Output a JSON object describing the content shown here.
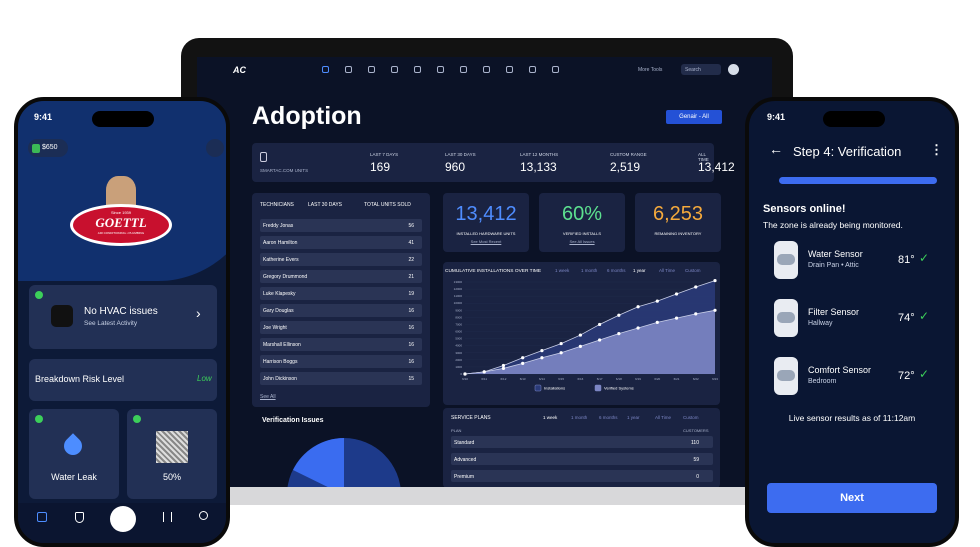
{
  "laptop": {
    "nav": {
      "logo": "AC",
      "more_tools": "More Tools",
      "search": "Search"
    },
    "title": "Adoption",
    "button": "Genair - All",
    "stats": {
      "label": "SMARTAC.COM UNITS",
      "items": [
        {
          "label": "LAST 7 DAYS",
          "value": "169"
        },
        {
          "label": "LAST 30 DAYS",
          "value": "960"
        },
        {
          "label": "LAST 12 MONTHS",
          "value": "13,133"
        },
        {
          "label": "CUSTOM RANGE",
          "value": "2,519"
        },
        {
          "label": "ALL TIME",
          "value": "13,412"
        }
      ]
    },
    "technicians": {
      "headers": [
        "TECHNICIANS",
        "LAST 30 DAYS",
        "TOTAL UNITS SOLD"
      ],
      "rows": [
        [
          "Freddy Jonas",
          "56"
        ],
        [
          "Aaron Hamilton",
          "41"
        ],
        [
          "Katherine Evers",
          "22"
        ],
        [
          "Gregory Drummond",
          "21"
        ],
        [
          "Luke Klapesky",
          "19"
        ],
        [
          "Gary Douglas",
          "16"
        ],
        [
          "Joe Wright",
          "16"
        ],
        [
          "Marshall Ellinson",
          "16"
        ],
        [
          "Harrison Boggs",
          "16"
        ],
        [
          "John Dickinson",
          "15"
        ]
      ],
      "see_all": "See All"
    },
    "kpis": [
      {
        "value": "13,412",
        "label": "INSTALLED HARDWARE UNITS",
        "link": "See Most Recent",
        "color": "#4f8dff"
      },
      {
        "value": "60%",
        "label": "VERIFIED INSTALLS",
        "link": "See All Issues",
        "color": "#5ce08f"
      },
      {
        "value": "6,253",
        "label": "REMAINING INVENTORY",
        "color": "#f4a93c"
      }
    ],
    "chart_data": {
      "type": "area",
      "title": "CUMULATIVE INSTALLATIONS OVER TIME",
      "ranges": [
        "1 week",
        "1 month",
        "6 months",
        "1 year",
        "All Time",
        "Custom"
      ],
      "categories": [
        "6/10",
        "6/11",
        "6/12",
        "6/13",
        "6/14",
        "6/15",
        "6/16",
        "6/17",
        "6/18",
        "6/19",
        "6/20",
        "6/21",
        "6/22",
        "6/23"
      ],
      "ylim": [
        0,
        13000
      ],
      "yticks": [
        0,
        1000,
        2000,
        3000,
        4000,
        5000,
        6000,
        7000,
        8000,
        9000,
        10000,
        11000,
        12000,
        13000
      ],
      "series": [
        {
          "name": "Installations",
          "color": "#2a3a78",
          "values": [
            0,
            300,
            1200,
            2300,
            3300,
            4300,
            5500,
            7000,
            8300,
            9500,
            10300,
            11300,
            12300,
            13200
          ]
        },
        {
          "name": "Verified Systems",
          "color": "#7c86c4",
          "values": [
            0,
            300,
            800,
            1500,
            2300,
            3000,
            3900,
            4800,
            5700,
            6500,
            7300,
            7900,
            8500,
            9000
          ]
        }
      ]
    },
    "verification_issues": "Verification Issues",
    "service_plans": {
      "title": "SERVICE PLANS",
      "ranges": [
        "1 week",
        "1 month",
        "6 months",
        "1 year",
        "All Time",
        "Custom"
      ],
      "headers": [
        "PLAN",
        "CUSTOMERS"
      ],
      "rows": [
        [
          "Standard",
          "110"
        ],
        [
          "Advanced",
          "59"
        ],
        [
          "Premium",
          "0"
        ]
      ]
    }
  },
  "left_phone": {
    "time": "9:41",
    "balance": "$650",
    "logo": {
      "since": "Since 1939",
      "name": "GOETTL",
      "tagline": "AIR CONDITIONING • PLUMBING"
    },
    "status": "No HVAC issues",
    "status_link": "See Latest Activity",
    "risk_label": "Breakdown Risk Level",
    "risk_value": "Low",
    "tiles": [
      "Water Leak",
      "50%"
    ]
  },
  "right_phone": {
    "time": "9:41",
    "title": "Step 4: Verification",
    "heading": "Sensors online!",
    "subheading": "The zone is already being monitored.",
    "sensors": [
      {
        "name": "Water Sensor",
        "location": "Drain Pan • Attic",
        "temp": "81°"
      },
      {
        "name": "Filter Sensor",
        "location": "Hallway",
        "temp": "74°"
      },
      {
        "name": "Comfort Sensor",
        "location": "Bedroom",
        "temp": "72°"
      }
    ],
    "footer": "Live sensor results as of 11:12am",
    "button": "Next"
  }
}
